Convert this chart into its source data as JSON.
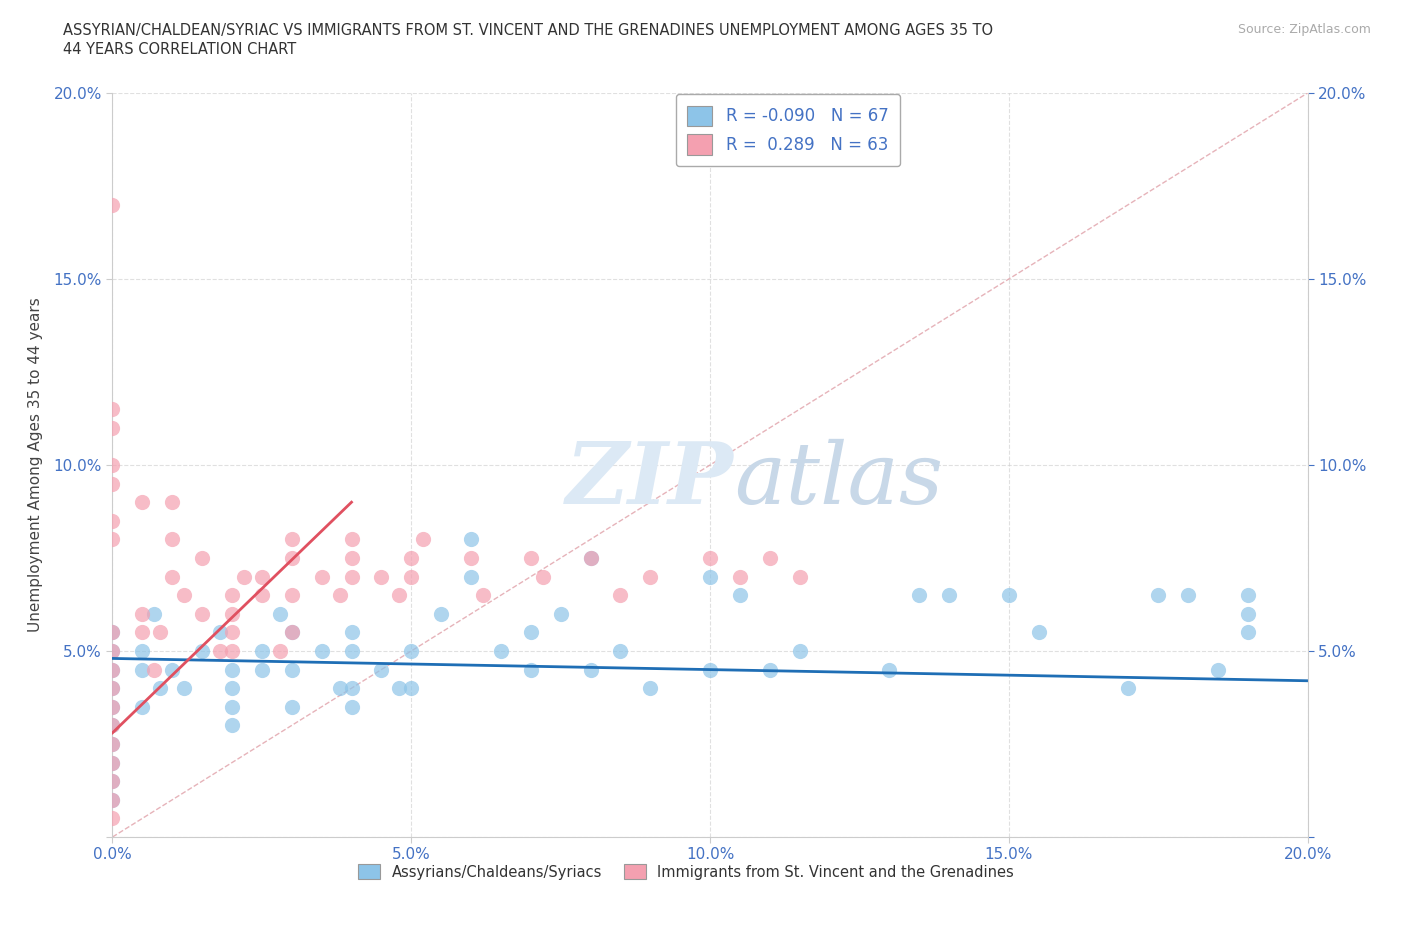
{
  "title_line1": "ASSYRIAN/CHALDEAN/SYRIAC VS IMMIGRANTS FROM ST. VINCENT AND THE GRENADINES UNEMPLOYMENT AMONG AGES 35 TO",
  "title_line2": "44 YEARS CORRELATION CHART",
  "source_text": "Source: ZipAtlas.com",
  "ylabel": "Unemployment Among Ages 35 to 44 years",
  "xlim": [
    0.0,
    0.2
  ],
  "ylim": [
    0.0,
    0.2
  ],
  "xticks": [
    0.0,
    0.05,
    0.1,
    0.15,
    0.2
  ],
  "yticks": [
    0.0,
    0.05,
    0.1,
    0.15,
    0.2
  ],
  "xticklabels": [
    "0.0%",
    "5.0%",
    "10.0%",
    "15.0%",
    "20.0%"
  ],
  "yticklabels": [
    "",
    "5.0%",
    "10.0%",
    "15.0%",
    "20.0%"
  ],
  "blue_color": "#8dc4e8",
  "pink_color": "#f4a0b0",
  "blue_line_color": "#1f6eb5",
  "pink_line_color": "#e05060",
  "ref_line_color": "#e0a0a8",
  "R_blue": -0.09,
  "N_blue": 67,
  "R_pink": 0.289,
  "N_pink": 63,
  "tick_color": "#4472c4",
  "watermark_color": "#dce9f5",
  "grid_color": "#cccccc",
  "background_color": "#ffffff",
  "blue_scatter_x": [
    0.0,
    0.0,
    0.0,
    0.0,
    0.0,
    0.0,
    0.0,
    0.0,
    0.0,
    0.0,
    0.005,
    0.005,
    0.005,
    0.007,
    0.008,
    0.01,
    0.012,
    0.015,
    0.018,
    0.02,
    0.02,
    0.02,
    0.02,
    0.025,
    0.025,
    0.028,
    0.03,
    0.03,
    0.03,
    0.035,
    0.038,
    0.04,
    0.04,
    0.04,
    0.04,
    0.045,
    0.048,
    0.05,
    0.05,
    0.055,
    0.06,
    0.06,
    0.065,
    0.07,
    0.07,
    0.075,
    0.08,
    0.08,
    0.085,
    0.09,
    0.1,
    0.1,
    0.105,
    0.11,
    0.115,
    0.13,
    0.135,
    0.14,
    0.15,
    0.155,
    0.17,
    0.175,
    0.18,
    0.185,
    0.19,
    0.19,
    0.19
  ],
  "blue_scatter_y": [
    0.055,
    0.05,
    0.045,
    0.04,
    0.035,
    0.03,
    0.025,
    0.02,
    0.015,
    0.01,
    0.05,
    0.045,
    0.035,
    0.06,
    0.04,
    0.045,
    0.04,
    0.05,
    0.055,
    0.045,
    0.04,
    0.035,
    0.03,
    0.05,
    0.045,
    0.06,
    0.055,
    0.045,
    0.035,
    0.05,
    0.04,
    0.055,
    0.05,
    0.04,
    0.035,
    0.045,
    0.04,
    0.05,
    0.04,
    0.06,
    0.07,
    0.08,
    0.05,
    0.055,
    0.045,
    0.06,
    0.075,
    0.045,
    0.05,
    0.04,
    0.07,
    0.045,
    0.065,
    0.045,
    0.05,
    0.045,
    0.065,
    0.065,
    0.065,
    0.055,
    0.04,
    0.065,
    0.065,
    0.045,
    0.065,
    0.06,
    0.055
  ],
  "pink_scatter_x": [
    0.0,
    0.0,
    0.0,
    0.0,
    0.0,
    0.0,
    0.0,
    0.0,
    0.0,
    0.0,
    0.0,
    0.0,
    0.005,
    0.005,
    0.007,
    0.008,
    0.01,
    0.01,
    0.01,
    0.012,
    0.015,
    0.015,
    0.018,
    0.02,
    0.02,
    0.02,
    0.02,
    0.022,
    0.025,
    0.025,
    0.028,
    0.03,
    0.03,
    0.03,
    0.03,
    0.035,
    0.038,
    0.04,
    0.04,
    0.04,
    0.045,
    0.048,
    0.05,
    0.05,
    0.052,
    0.06,
    0.062,
    0.07,
    0.072,
    0.08,
    0.085,
    0.09,
    0.1,
    0.105,
    0.11,
    0.115,
    0.005,
    0.0,
    0.0,
    0.0,
    0.0,
    0.0,
    0.0
  ],
  "pink_scatter_y": [
    0.055,
    0.05,
    0.045,
    0.04,
    0.035,
    0.03,
    0.025,
    0.02,
    0.015,
    0.01,
    0.005,
    0.17,
    0.06,
    0.055,
    0.045,
    0.055,
    0.07,
    0.08,
    0.09,
    0.065,
    0.06,
    0.075,
    0.05,
    0.065,
    0.06,
    0.055,
    0.05,
    0.07,
    0.065,
    0.07,
    0.05,
    0.075,
    0.065,
    0.055,
    0.08,
    0.07,
    0.065,
    0.08,
    0.075,
    0.07,
    0.07,
    0.065,
    0.075,
    0.07,
    0.08,
    0.075,
    0.065,
    0.075,
    0.07,
    0.075,
    0.065,
    0.07,
    0.075,
    0.07,
    0.075,
    0.07,
    0.09,
    0.095,
    0.1,
    0.11,
    0.115,
    0.08,
    0.085
  ]
}
